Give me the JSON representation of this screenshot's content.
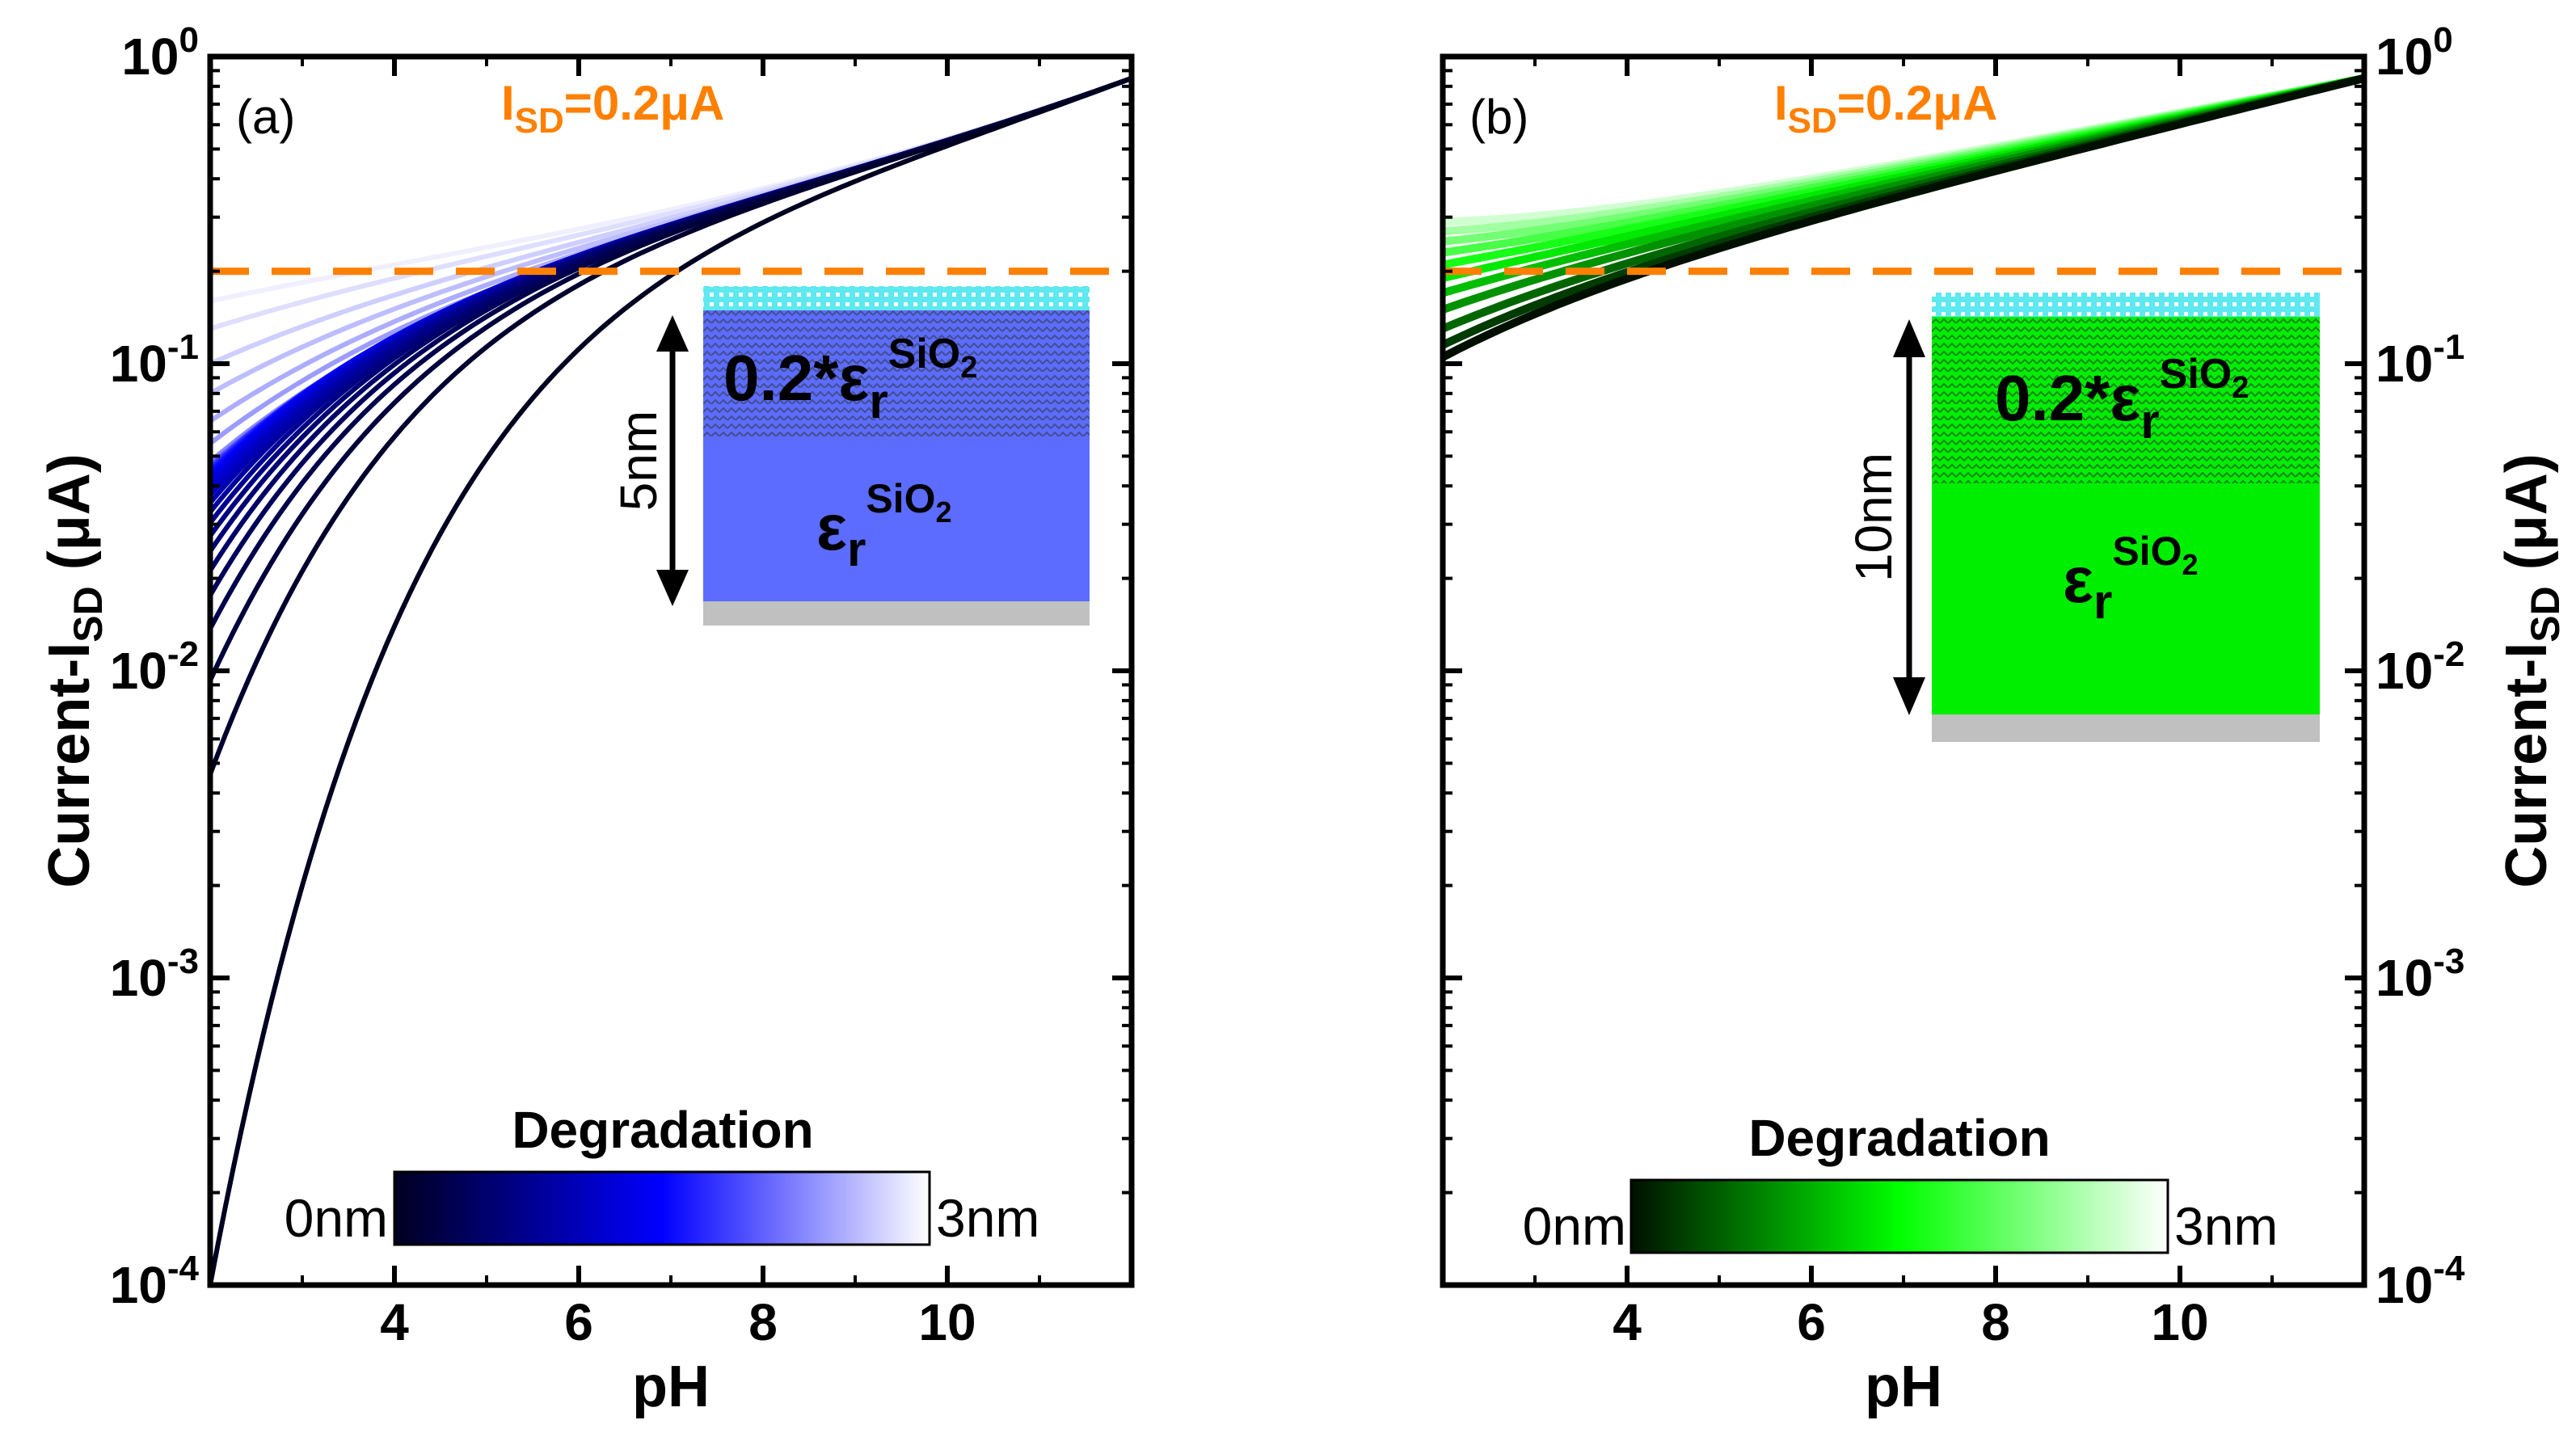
{
  "chart_data": [
    {
      "type": "line",
      "panel_label": "(a)",
      "xlabel": "pH",
      "ylabel": "Current-I",
      "ylabel_sub": "SD",
      "ylabel_unit": " (μA)",
      "xlim": [
        2,
        12
      ],
      "ylim": [
        0.0001,
        1
      ],
      "yscale": "log",
      "x_ticks": [
        4,
        6,
        8,
        10
      ],
      "y_ticks": [
        0.0001,
        0.001,
        0.01,
        0.1,
        1
      ],
      "y_tick_exponents": [
        "-4",
        "-3",
        "-2",
        "-1",
        "0"
      ],
      "y_tick_base": "10",
      "threshold": {
        "value": 0.2,
        "label_main": "I",
        "label_sub": "SD",
        "label_rest": "=0.2μA",
        "color": "#ff8000"
      },
      "series_description": "family of curves from degradation 0nm (dark) to 3nm (light)",
      "series_start_values_at_pH2": [
        0.0001,
        0.0046,
        0.0093,
        0.0137,
        0.0176,
        0.0212,
        0.0245,
        0.0275,
        0.0303,
        0.0329,
        0.0352,
        0.0373,
        0.0391,
        0.0407,
        0.042,
        0.0431,
        0.044,
        0.0447,
        0.0452,
        0.0456,
        0.046,
        0.0463,
        0.0466,
        0.047,
        0.048,
        0.055,
        0.065,
        0.08,
        0.1,
        0.13,
        0.16,
        0.19
      ],
      "series_end_value_at_pH12": 0.85,
      "colorbar": {
        "title": "Degradation",
        "min_label": "0nm",
        "max_label": "3nm",
        "colors": [
          "#000020",
          "#0000ff",
          "#ffffff"
        ]
      },
      "inset": {
        "top_layer": "0.2*ε",
        "top_sup": "SiO",
        "top_sub": "2",
        "top_r": "r",
        "bottom_layer": "ε",
        "bottom_sup": "SiO",
        "bottom_sub": "2",
        "bottom_r": "r",
        "thickness": "5nm",
        "fill": "#5b6cff"
      }
    },
    {
      "type": "line",
      "panel_label": "(b)",
      "xlabel": "pH",
      "ylabel": "Current-I",
      "ylabel_sub": "SD",
      "ylabel_unit": " (μA)",
      "xlim": [
        2,
        12
      ],
      "ylim": [
        0.0001,
        1
      ],
      "yscale": "log",
      "x_ticks": [
        4,
        6,
        8,
        10
      ],
      "y_ticks": [
        0.0001,
        0.001,
        0.01,
        0.1,
        1
      ],
      "y_tick_exponents": [
        "-4",
        "-3",
        "-2",
        "-1",
        "0"
      ],
      "y_tick_base": "10",
      "threshold": {
        "value": 0.2,
        "label_main": "I",
        "label_sub": "SD",
        "label_rest": "=0.2μA",
        "color": "#ff8000"
      },
      "series_description": "family of curves from degradation 0nm (dark) to 3nm (light)",
      "series_start_values_at_pH2": [
        0.105,
        0.115,
        0.13,
        0.15,
        0.17,
        0.19,
        0.21,
        0.23,
        0.25,
        0.27,
        0.29,
        0.31
      ],
      "series_end_value_at_pH12": 0.85,
      "colorbar": {
        "title": "Degradation",
        "min_label": "0nm",
        "max_label": "3nm",
        "colors": [
          "#001000",
          "#00ff00",
          "#ffffff"
        ]
      },
      "inset": {
        "top_layer": "0.2*ε",
        "top_sup": "SiO",
        "top_sub": "2",
        "top_r": "r",
        "bottom_layer": "ε",
        "bottom_sup": "SiO",
        "bottom_sub": "2",
        "bottom_r": "r",
        "thickness": "10nm",
        "fill": "#00ee00"
      }
    }
  ],
  "colors": {
    "threshold": "#ff8000",
    "axis": "#000000",
    "substrate": "#c0c0c0",
    "cap": "#5ee8f0"
  }
}
